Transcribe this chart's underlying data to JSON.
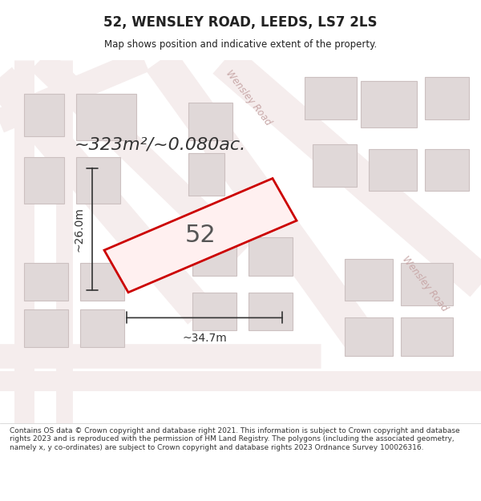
{
  "title": "52, WENSLEY ROAD, LEEDS, LS7 2LS",
  "subtitle": "Map shows position and indicative extent of the property.",
  "area_text": "~323m²/~0.080ac.",
  "number_label": "52",
  "dim_width": "~34.7m",
  "dim_height": "~26.0m",
  "footer": "Contains OS data © Crown copyright and database right 2021. This information is subject to Crown copyright and database rights 2023 and is reproduced with the permission of HM Land Registry. The polygons (including the associated geometry, namely x, y co-ordinates) are subject to Crown copyright and database rights 2023 Ordnance Survey 100026316.",
  "bg_color": "#f5f5f5",
  "map_bg": "#f0eeee",
  "road_color": "#ffffff",
  "building_color": "#e8e0e0",
  "building_edge": "#d4c8c8",
  "property_color": "#ffeeee",
  "property_edge": "#cc0000",
  "road_label_color": "#c8a0a0",
  "dim_color": "#333333",
  "text_color": "#222222",
  "footer_color": "#333333"
}
